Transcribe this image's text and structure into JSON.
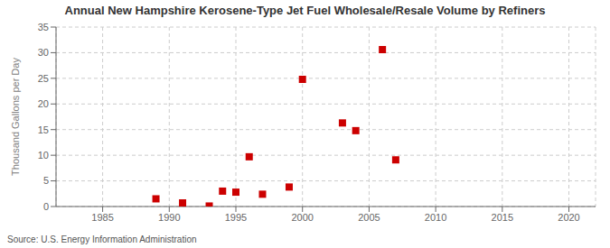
{
  "chart_data": {
    "type": "scatter",
    "title": "Annual New Hampshire Kerosene-Type Jet Fuel Wholesale/Resale Volume by Refiners",
    "ylabel": "Thousand Gallons per Day",
    "annotations": [
      "Source: U.S. Energy Information Administration"
    ],
    "x": [
      1989,
      1991,
      1993,
      1994,
      1995,
      1996,
      1997,
      1999,
      2000,
      2003,
      2004,
      2006,
      2007
    ],
    "values": [
      1.5,
      0.7,
      0.1,
      3.0,
      2.8,
      9.7,
      2.4,
      3.8,
      24.8,
      16.3,
      14.8,
      30.6,
      9.1
    ],
    "color": "#cc0000",
    "marker": "square",
    "xlim": [
      1981.5,
      2022
    ],
    "ylim": [
      0,
      35
    ],
    "xticks": [
      1985,
      1990,
      1995,
      2000,
      2005,
      2010,
      2015,
      2020
    ],
    "yticks": [
      0,
      5,
      10,
      15,
      20,
      25,
      30,
      35
    ],
    "grid": true
  }
}
